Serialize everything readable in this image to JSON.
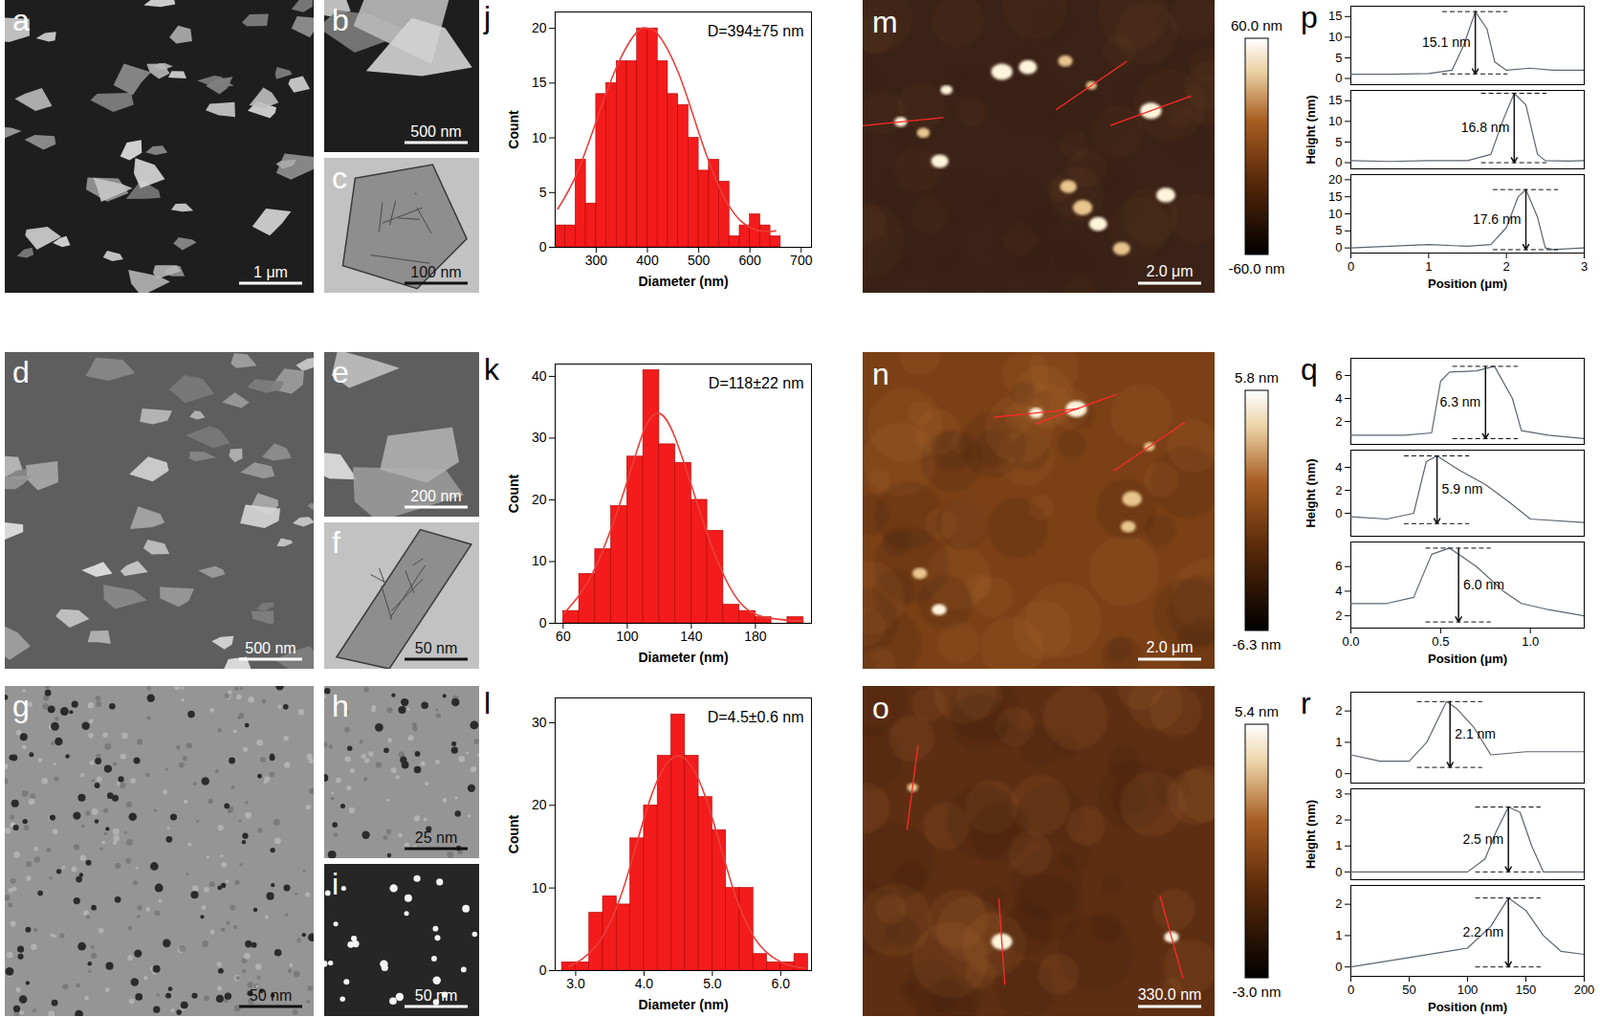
{
  "chart_data": [
    {
      "panel": "j",
      "type": "histogram",
      "xlabel": "Diameter (nm)",
      "ylabel": "Count",
      "annotation": "D=394±75 nm",
      "color": "#f31b1b",
      "bins": [
        220,
        240,
        260,
        280,
        300,
        320,
        340,
        360,
        380,
        400,
        420,
        440,
        460,
        480,
        500,
        520,
        540,
        560,
        580,
        600,
        620,
        640,
        660
      ],
      "counts": [
        2,
        2,
        8,
        4,
        14,
        15,
        17,
        17,
        20,
        20,
        17,
        14,
        13,
        10,
        7,
        8,
        6,
        1,
        2,
        3,
        2,
        1
      ],
      "fit": {
        "color": "#e8413c",
        "x": [
          225,
          260,
          300,
          340,
          380,
          400,
          420,
          460,
          500,
          540,
          580,
          620,
          650
        ],
        "values": [
          3.5,
          6.5,
          11.5,
          16.5,
          19.7,
          20,
          19.5,
          16,
          10.5,
          5.5,
          2.5,
          1.5,
          1.5
        ]
      },
      "xlim": [
        220,
        720
      ],
      "xticks": [
        300,
        400,
        500,
        600,
        700
      ],
      "ylim": [
        0,
        21.5
      ],
      "yticks": [
        0,
        5,
        10,
        15,
        20
      ]
    },
    {
      "panel": "k",
      "type": "histogram",
      "xlabel": "Diameter (nm)",
      "ylabel": "Count",
      "annotation": "D=118±22 nm",
      "color": "#f31b1b",
      "bins": [
        60,
        70,
        80,
        90,
        100,
        110,
        120,
        130,
        140,
        150,
        160,
        170,
        180,
        190,
        200,
        210
      ],
      "counts": [
        2,
        8,
        12,
        19,
        27,
        41,
        29,
        26,
        20,
        15,
        3,
        2,
        1,
        0,
        1
      ],
      "fit": {
        "color": "#e8413c",
        "x": [
          60,
          80,
          100,
          110,
          118,
          130,
          150,
          170,
          190,
          210
        ],
        "values": [
          1.5,
          9,
          23,
          31,
          34,
          30,
          14.5,
          3.5,
          0.8,
          0.3
        ]
      },
      "xlim": [
        55,
        215
      ],
      "xticks": [
        60,
        100,
        140,
        180
      ],
      "ylim": [
        0,
        42
      ],
      "yticks": [
        0,
        10,
        20,
        30,
        40
      ]
    },
    {
      "panel": "l",
      "type": "histogram",
      "xlabel": "Diameter (nm)",
      "ylabel": "Count",
      "annotation": "D=4.5±0.6 nm",
      "color": "#f31b1b",
      "bins": [
        2.8,
        3.0,
        3.2,
        3.4,
        3.6,
        3.8,
        4.0,
        4.2,
        4.4,
        4.6,
        4.8,
        5.0,
        5.2,
        5.4,
        5.6,
        5.8,
        6.0,
        6.2,
        6.4
      ],
      "counts": [
        1,
        1,
        7,
        9,
        8,
        16,
        20,
        26,
        31,
        26,
        21,
        17,
        10,
        10,
        2,
        1,
        1,
        2
      ],
      "fit": {
        "color": "#e8413c",
        "x": [
          2.9,
          3.3,
          3.7,
          4.1,
          4.5,
          4.9,
          5.3,
          5.7,
          6.1,
          6.35
        ],
        "values": [
          0.5,
          3,
          10,
          21,
          26,
          21,
          10,
          3,
          0.7,
          0.3
        ]
      },
      "xlim": [
        2.7,
        6.45
      ],
      "xticks": [
        {
          "value": 3,
          "label": "3.0"
        },
        {
          "value": 4,
          "label": "4.0"
        },
        {
          "value": 5,
          "label": "5.0"
        },
        {
          "value": 6,
          "label": "6.0"
        }
      ],
      "ylim": [
        0,
        33
      ],
      "yticks": [
        0,
        10,
        20,
        30
      ]
    },
    {
      "panel": "p",
      "type": "line",
      "xlabel": "Position (μm)",
      "ylabel": "Height (nm)",
      "color": "#5a6570",
      "xlim": [
        0,
        3
      ],
      "xticks": [
        0,
        1,
        2,
        3
      ],
      "traces": [
        {
          "x": [
            0,
            0.5,
            1.0,
            1.3,
            1.45,
            1.6,
            1.75,
            1.85,
            2.0,
            2.3,
            2.6,
            3
          ],
          "values": [
            1,
            1,
            1.2,
            2,
            8,
            16.2,
            12,
            4,
            2,
            2.5,
            2,
            2
          ],
          "ylim": [
            -1.5,
            17.5
          ],
          "yticks": [
            0,
            5,
            10,
            15
          ],
          "measure": {
            "x": 1.6,
            "low": 1.1,
            "high": 16.2,
            "label": "15.1 nm"
          }
        },
        {
          "x": [
            0,
            0.5,
            1.0,
            1.5,
            1.8,
            1.95,
            2.1,
            2.25,
            2.4,
            2.5,
            2.8,
            3
          ],
          "values": [
            0.5,
            0.3,
            0.5,
            0.5,
            2,
            10,
            16.8,
            14,
            2,
            0.5,
            0.4,
            0.5
          ],
          "ylim": [
            -1.5,
            17.5
          ],
          "yticks": [
            0,
            5,
            10,
            15
          ],
          "measure": {
            "x": 2.1,
            "low": 0,
            "high": 16.8,
            "label": "16.8 nm"
          }
        },
        {
          "x": [
            0,
            0.5,
            1.0,
            1.5,
            1.8,
            2.0,
            2.15,
            2.25,
            2.4,
            2.5,
            2.6,
            3
          ],
          "values": [
            0,
            0.5,
            1,
            0.5,
            1,
            6,
            15,
            17.1,
            9,
            0,
            -0.5,
            0
          ],
          "ylim": [
            -1.5,
            21.5
          ],
          "yticks": [
            0,
            5,
            10,
            15,
            20
          ],
          "measure": {
            "x": 2.25,
            "low": -0.5,
            "high": 17.1,
            "label": "17.6 nm"
          }
        }
      ]
    },
    {
      "panel": "q",
      "type": "line",
      "xlabel": "Position (μm)",
      "ylabel": "Height (nm)",
      "color": "#5a6570",
      "xlim": [
        0,
        1.3
      ],
      "xticks": [
        {
          "value": 0,
          "label": "0.0"
        },
        {
          "value": 0.5,
          "label": "0.5"
        },
        {
          "value": 1,
          "label": "1.0"
        }
      ],
      "traces": [
        {
          "x": [
            0,
            0.3,
            0.45,
            0.5,
            0.55,
            0.7,
            0.8,
            0.9,
            0.95,
            1.1,
            1.3
          ],
          "values": [
            0.8,
            0.8,
            1,
            5.5,
            6.3,
            6.4,
            6.8,
            4,
            1.2,
            0.8,
            0.5
          ],
          "ylim": [
            0,
            7.5
          ],
          "yticks": [
            2,
            4,
            6
          ],
          "measure": {
            "x": 0.75,
            "low": 0.5,
            "high": 6.8,
            "label": "6.3 nm"
          }
        },
        {
          "x": [
            0,
            0.2,
            0.35,
            0.42,
            0.48,
            0.6,
            0.75,
            0.88,
            1.0,
            1.3
          ],
          "values": [
            -0.3,
            -0.5,
            0,
            4.5,
            5,
            3.8,
            2.5,
            1,
            -0.5,
            -0.8
          ],
          "ylim": [
            -2,
            5.5
          ],
          "yticks": [
            0,
            2,
            4
          ],
          "measure": {
            "x": 0.48,
            "low": -0.9,
            "high": 5,
            "label": "5.9 nm"
          }
        },
        {
          "x": [
            0,
            0.2,
            0.35,
            0.45,
            0.55,
            0.7,
            0.85,
            0.95,
            1.1,
            1.3
          ],
          "values": [
            3,
            3,
            3.5,
            7,
            7.5,
            6,
            4,
            3,
            2.5,
            2
          ],
          "ylim": [
            1,
            8
          ],
          "yticks": [
            2,
            4,
            6
          ],
          "measure": {
            "x": 0.6,
            "low": 1.5,
            "high": 7.5,
            "label": "6.0 nm"
          }
        }
      ]
    },
    {
      "panel": "r",
      "type": "line",
      "xlabel": "Position (nm)",
      "ylabel": "Height (nm)",
      "color": "#5a6570",
      "xlim": [
        0,
        200
      ],
      "xticks": [
        0,
        50,
        100,
        150,
        200
      ],
      "traces": [
        {
          "x": [
            0,
            25,
            50,
            65,
            82,
            90,
            105,
            120,
            150,
            200
          ],
          "values": [
            0.6,
            0.4,
            0.4,
            1,
            2.3,
            2.1,
            1.5,
            0.6,
            0.7,
            0.7
          ],
          "ylim": [
            -0.3,
            2.6
          ],
          "yticks": [
            0,
            1,
            2
          ],
          "measure": {
            "x": 85,
            "low": 0.2,
            "high": 2.3,
            "label": "2.1 nm"
          }
        },
        {
          "x": [
            0,
            50,
            100,
            115,
            125,
            135,
            145,
            155,
            165,
            200
          ],
          "values": [
            0,
            0,
            0,
            0.5,
            1.6,
            2.5,
            2.3,
            1,
            0,
            0
          ],
          "ylim": [
            -0.3,
            3.2
          ],
          "yticks": [
            0,
            1,
            2,
            3
          ],
          "measure": {
            "x": 135,
            "low": 0,
            "high": 2.5,
            "label": "2.5 nm"
          }
        },
        {
          "x": [
            0,
            50,
            100,
            120,
            135,
            150,
            165,
            180,
            200
          ],
          "values": [
            0,
            0.3,
            0.6,
            1.3,
            2.2,
            1.8,
            1,
            0.5,
            0.4
          ],
          "ylim": [
            -0.3,
            2.6
          ],
          "yticks": [
            0,
            1,
            2
          ],
          "measure": {
            "x": 135,
            "low": 0,
            "high": 2.2,
            "label": "2.2 nm"
          }
        }
      ]
    }
  ],
  "micrographs": [
    [
      {
        "panel": "a",
        "scale_bar": "1 μm"
      },
      {
        "panel": "b",
        "scale_bar": "500 nm"
      },
      {
        "panel": "c",
        "scale_bar": "100 nm"
      }
    ],
    [
      {
        "panel": "d",
        "scale_bar": "500 nm"
      },
      {
        "panel": "e",
        "scale_bar": "200 nm"
      },
      {
        "panel": "f",
        "scale_bar": "50 nm"
      }
    ],
    [
      {
        "panel": "g",
        "scale_bar": "50 nm"
      },
      {
        "panel": "h",
        "scale_bar": "25 nm"
      },
      {
        "panel": "i",
        "scale_bar": "50 nm"
      }
    ]
  ],
  "afm": [
    {
      "panel": "m",
      "scale_bar": "2.0 μm",
      "colorbar": {
        "range": [
          -60,
          60
        ],
        "labels": [
          "-60.0 nm",
          "60.0 nm"
        ]
      }
    },
    {
      "panel": "n",
      "scale_bar": "2.0 μm",
      "colorbar": {
        "range": [
          -6.3,
          5.8
        ],
        "labels": [
          "-6.3 nm",
          "5.8 nm"
        ]
      }
    },
    {
      "panel": "o",
      "scale_bar": "330.0 nm",
      "colorbar": {
        "range": [
          -3.0,
          5.4
        ],
        "labels": [
          "-3.0 nm",
          "5.4 nm"
        ]
      }
    }
  ]
}
